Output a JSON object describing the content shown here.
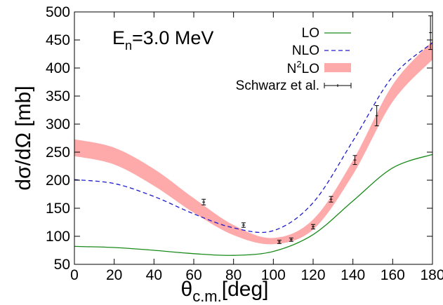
{
  "chart_data": {
    "type": "line",
    "annotation": {
      "main": "E",
      "sub": "n",
      "rest": "=3.0 MeV"
    },
    "xlabel": {
      "main": "θ",
      "sub": "c.m.",
      "rest": "[deg]"
    },
    "ylabel": "dσ/dΩ [mb]",
    "xlim": [
      0,
      180
    ],
    "ylim": [
      50,
      500
    ],
    "xticks": [
      "0",
      "20",
      "40",
      "60",
      "80",
      "100",
      "120",
      "140",
      "160",
      "180"
    ],
    "yticks": [
      "50",
      "100",
      "150",
      "200",
      "250",
      "300",
      "350",
      "400",
      "450",
      "500"
    ],
    "grid": false,
    "legend_position": "top-right",
    "legend": [
      {
        "key": "lo",
        "main": "LO",
        "sup": ""
      },
      {
        "key": "nlo",
        "main": "NLO",
        "sup": ""
      },
      {
        "key": "n2lo",
        "main": "N",
        "sup": "2",
        "rest": "LO"
      },
      {
        "key": "data",
        "main": "Schwarz et al."
      }
    ],
    "colors": {
      "lo": "#1a8a1a",
      "nlo": "#1a1acc",
      "n2lo": "#ffaaaa",
      "data": "#000000"
    },
    "series": [
      {
        "key": "lo",
        "style": "solid",
        "x": [
          0,
          20,
          40,
          60,
          80,
          100,
          120,
          140,
          160,
          180
        ],
        "y": [
          82,
          80,
          75,
          69,
          66,
          73,
          103,
          163,
          222,
          246
        ]
      },
      {
        "key": "nlo",
        "style": "dashed",
        "x": [
          0,
          20,
          40,
          60,
          80,
          100,
          120,
          140,
          160,
          180
        ],
        "y": [
          201,
          194,
          171,
          140,
          115,
          110,
          160,
          270,
          385,
          445
        ]
      },
      {
        "key": "n2lo",
        "style": "band",
        "x": [
          0,
          20,
          40,
          60,
          80,
          100,
          120,
          140,
          160,
          180
        ],
        "y_low": [
          243,
          228,
          190,
          142,
          102,
          86,
          112,
          210,
          340,
          415
        ],
        "y_high": [
          273,
          258,
          220,
          168,
          120,
          97,
          130,
          235,
          370,
          448
        ]
      }
    ],
    "points": {
      "key": "data",
      "x": [
        65,
        85,
        103,
        109,
        120,
        129,
        141,
        152,
        179
      ],
      "y": [
        161,
        120,
        90,
        94,
        117,
        166,
        236,
        315,
        463
      ],
      "err": [
        5,
        4,
        3,
        3,
        4,
        5,
        8,
        18,
        30
      ]
    }
  }
}
